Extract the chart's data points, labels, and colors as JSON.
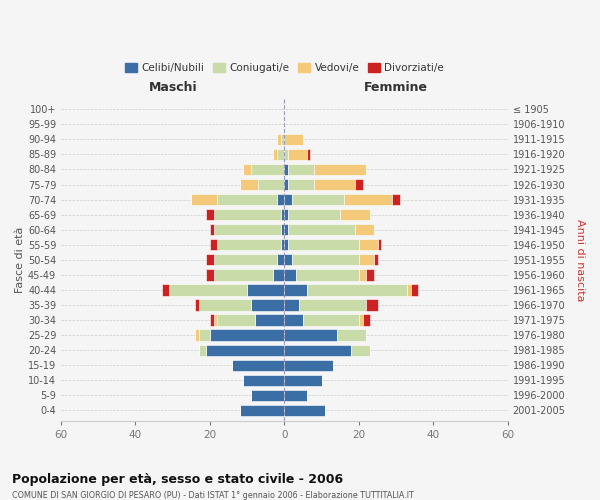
{
  "age_groups": [
    "100+",
    "95-99",
    "90-94",
    "85-89",
    "80-84",
    "75-79",
    "70-74",
    "65-69",
    "60-64",
    "55-59",
    "50-54",
    "45-49",
    "40-44",
    "35-39",
    "30-34",
    "25-29",
    "20-24",
    "15-19",
    "10-14",
    "5-9",
    "0-4"
  ],
  "birth_years": [
    "≤ 1905",
    "1906-1910",
    "1911-1915",
    "1916-1920",
    "1921-1925",
    "1926-1930",
    "1931-1935",
    "1936-1940",
    "1941-1945",
    "1946-1950",
    "1951-1955",
    "1956-1960",
    "1961-1965",
    "1966-1970",
    "1971-1975",
    "1976-1980",
    "1981-1985",
    "1986-1990",
    "1991-1995",
    "1996-2000",
    "2001-2005"
  ],
  "male": {
    "celibi": [
      0,
      0,
      0,
      0,
      0,
      0,
      2,
      1,
      1,
      1,
      2,
      3,
      10,
      9,
      8,
      20,
      21,
      14,
      11,
      9,
      12
    ],
    "coniugati": [
      0,
      0,
      1,
      2,
      9,
      7,
      16,
      18,
      18,
      17,
      17,
      16,
      21,
      14,
      10,
      3,
      2,
      0,
      0,
      0,
      0
    ],
    "vedovi": [
      0,
      0,
      1,
      1,
      2,
      5,
      7,
      0,
      0,
      0,
      0,
      0,
      0,
      0,
      1,
      1,
      0,
      0,
      0,
      0,
      0
    ],
    "divorziati": [
      0,
      0,
      0,
      0,
      0,
      0,
      0,
      2,
      1,
      2,
      2,
      2,
      2,
      1,
      1,
      0,
      0,
      0,
      0,
      0,
      0
    ]
  },
  "female": {
    "nubili": [
      0,
      0,
      0,
      0,
      1,
      1,
      2,
      1,
      1,
      1,
      2,
      3,
      6,
      4,
      5,
      14,
      18,
      13,
      10,
      6,
      11
    ],
    "coniugate": [
      0,
      0,
      0,
      1,
      7,
      7,
      14,
      14,
      18,
      19,
      18,
      17,
      27,
      18,
      15,
      8,
      5,
      0,
      0,
      0,
      0
    ],
    "vedove": [
      0,
      0,
      5,
      5,
      14,
      11,
      13,
      8,
      5,
      5,
      4,
      2,
      1,
      0,
      1,
      0,
      0,
      0,
      0,
      0,
      0
    ],
    "divorziate": [
      0,
      0,
      0,
      1,
      0,
      2,
      2,
      0,
      0,
      1,
      1,
      2,
      2,
      3,
      2,
      0,
      0,
      0,
      0,
      0,
      0
    ]
  },
  "colors": {
    "celibi": "#3a6ea5",
    "coniugati": "#c8dba8",
    "vedovi": "#f5c97a",
    "divorziati": "#cc2222"
  },
  "title": "Popolazione per età, sesso e stato civile - 2006",
  "subtitle": "COMUNE DI SAN GIORGIO DI PESARO (PU) - Dati ISTAT 1° gennaio 2006 - Elaborazione TUTTITALIA.IT",
  "xlabel_left": "Maschi",
  "xlabel_right": "Femmine",
  "ylabel_left": "Fasce di età",
  "ylabel_right": "Anni di nascita",
  "xlim": 60,
  "legend_labels": [
    "Celibi/Nubili",
    "Coniugati/e",
    "Vedovi/e",
    "Divorziati/e"
  ],
  "bg_color": "#f5f5f5",
  "grid_color": "#cccccc"
}
